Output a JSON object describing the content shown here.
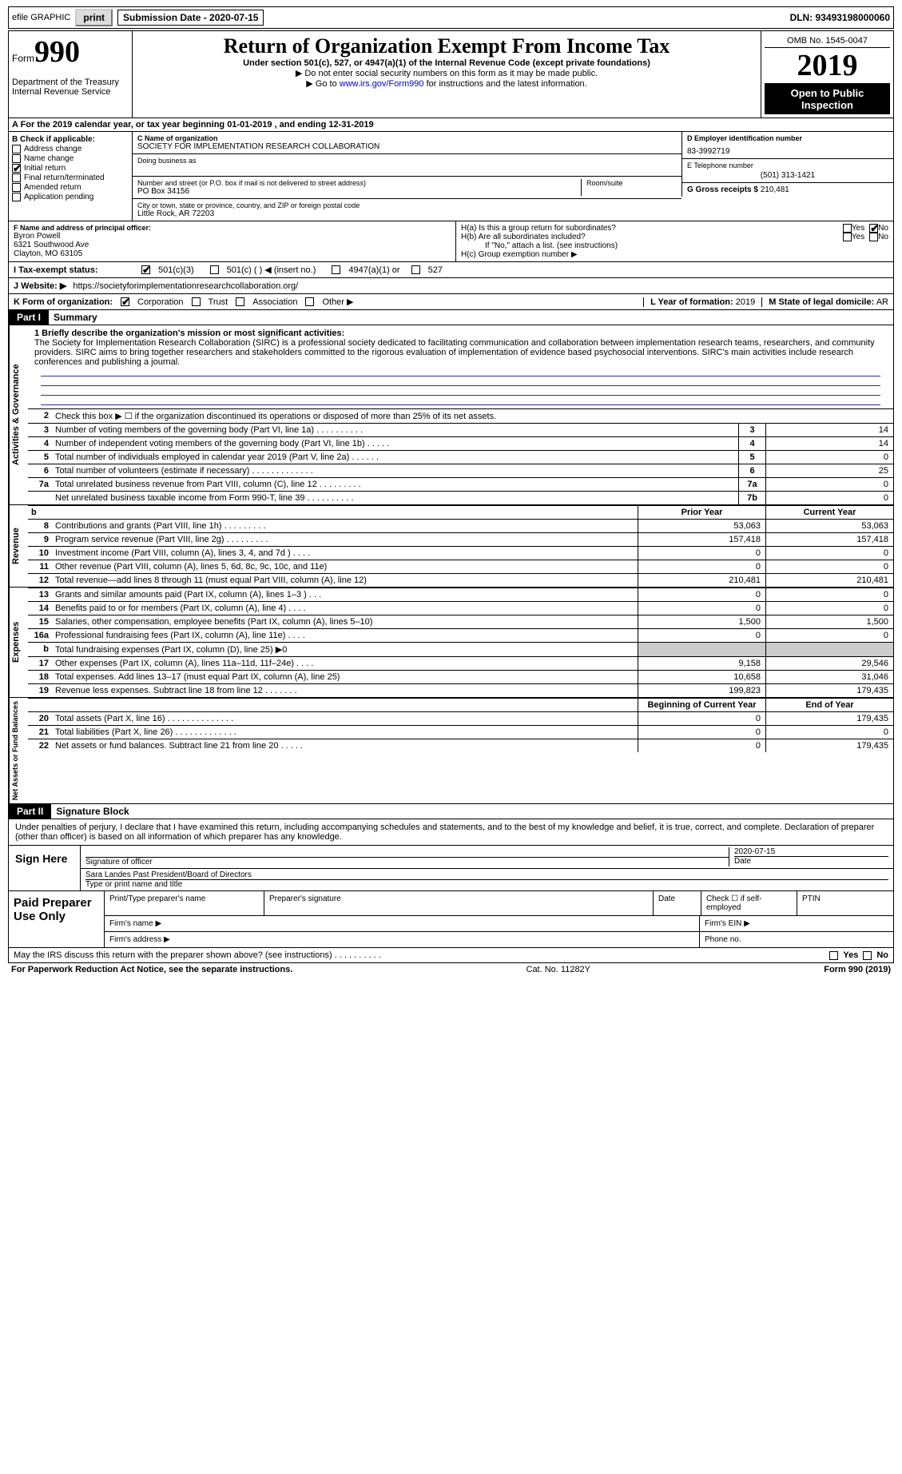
{
  "topbar": {
    "efile": "efile GRAPHIC",
    "print": "print",
    "subdate_label": "Submission Date - 2020-07-15",
    "dln": "DLN: 93493198000060"
  },
  "header": {
    "form_word": "Form",
    "form_num": "990",
    "dept": "Department of the Treasury\nInternal Revenue Service",
    "title": "Return of Organization Exempt From Income Tax",
    "sub": "Under section 501(c), 527, or 4947(a)(1) of the Internal Revenue Code (except private foundations)",
    "note1": "▶ Do not enter social security numbers on this form as it may be made public.",
    "note2a": "▶ Go to ",
    "note2_link": "www.irs.gov/Form990",
    "note2b": " for instructions and the latest information.",
    "omb": "OMB No. 1545-0047",
    "year": "2019",
    "inspect": "Open to Public Inspection"
  },
  "row_a": "A For the 2019 calendar year, or tax year beginning 01-01-2019     , and ending 12-31-2019",
  "box_b": {
    "title": "B Check if applicable:",
    "items": [
      "Address change",
      "Name change",
      "Initial return",
      "Final return/terminated",
      "Amended return",
      "Application pending"
    ],
    "checked": [
      false,
      false,
      true,
      false,
      false,
      false
    ]
  },
  "box_c": {
    "name_label": "C Name of organization",
    "name": "SOCIETY FOR IMPLEMENTATION RESEARCH COLLABORATION",
    "dba_label": "Doing business as",
    "addr_label": "Number and street (or P.O. box if mail is not delivered to street address)",
    "room_label": "Room/suite",
    "addr": "PO Box 34156",
    "city_label": "City or town, state or province, country, and ZIP or foreign postal code",
    "city": "Little Rock, AR   72203"
  },
  "box_d": {
    "label": "D Employer identification number",
    "val": "83-3992719"
  },
  "box_e": {
    "label": "E Telephone number",
    "val": "(501) 313-1421"
  },
  "box_g": {
    "label": "G Gross receipts $",
    "val": "210,481"
  },
  "box_f": {
    "label": "F  Name and address of principal officer:",
    "name": "Byron Powell",
    "addr1": "6321 Southwood Ave",
    "addr2": "Clayton, MO   63105"
  },
  "box_h": {
    "ha": "H(a)  Is this a group return for subordinates?",
    "hb": "H(b)  Are all subordinates included?",
    "hb_note": "If \"No,\" attach a list. (see instructions)",
    "hc": "H(c)  Group exemption number ▶",
    "yes": "Yes",
    "no": "No"
  },
  "box_i": {
    "label": "I   Tax-exempt status:",
    "o1": "501(c)(3)",
    "o2": "501(c) (  ) ◀ (insert no.)",
    "o3": "4947(a)(1) or",
    "o4": "527"
  },
  "box_j": {
    "label": "J   Website: ▶",
    "val": " https://societyforimplementationresearchcollaboration.org/"
  },
  "box_k": {
    "label": "K Form of organization:",
    "o1": "Corporation",
    "o2": "Trust",
    "o3": "Association",
    "o4": "Other ▶"
  },
  "box_l": {
    "label": "L Year of formation:",
    "val": "2019"
  },
  "box_m": {
    "label": "M State of legal domicile:",
    "val": "AR"
  },
  "part1": {
    "tag": "Part I",
    "title": "Summary"
  },
  "mission": {
    "q": "1   Briefly describe the organization's mission or most significant activities:",
    "text": "The Society for Implementation Research Collaboration (SIRC) is a professional society dedicated to facilitating communication and collaboration between implementation research teams, researchers, and community providers. SIRC aims to bring together researchers and stakeholders committed to the rigorous evaluation of implementation of evidence based psychosocial interventions. SIRC's main activities include research conferences and publishing a journal."
  },
  "gov_rows": [
    {
      "n": "2",
      "t": "Check this box ▶ ☐  if the organization discontinued its operations or disposed of more than 25% of its net assets.",
      "k": "",
      "v": ""
    },
    {
      "n": "3",
      "t": "Number of voting members of the governing body (Part VI, line 1a)  .    .    .    .    .    .    .    .    .    .",
      "k": "3",
      "v": "14"
    },
    {
      "n": "4",
      "t": "Number of independent voting members of the governing body (Part VI, line 1b)  .    .    .    .    .",
      "k": "4",
      "v": "14"
    },
    {
      "n": "5",
      "t": "Total number of individuals employed in calendar year 2019 (Part V, line 2a)  .    .    .    .    .    .",
      "k": "5",
      "v": "0"
    },
    {
      "n": "6",
      "t": "Total number of volunteers (estimate if necessary)   .    .    .    .    .    .    .    .    .    .    .    .    .",
      "k": "6",
      "v": "25"
    },
    {
      "n": "7a",
      "t": "Total unrelated business revenue from Part VIII, column (C), line 12  .    .    .    .    .    .    .    .    .",
      "k": "7a",
      "v": "0"
    },
    {
      "n": "",
      "t": "Net unrelated business taxable income from Form 990-T, line 39  .    .    .    .    .    .    .    .    .    .",
      "k": "7b",
      "v": "0"
    }
  ],
  "rev_hdr": {
    "b": "b",
    "c1": "Prior Year",
    "c2": "Current Year"
  },
  "rev_rows": [
    {
      "n": "8",
      "t": "Contributions and grants (Part VIII, line 1h)   .    .    .    .    .    .    .    .    .",
      "c1": "53,063",
      "c2": "53,063"
    },
    {
      "n": "9",
      "t": "Program service revenue (Part VIII, line 2g)   .    .    .    .    .    .    .    .    .",
      "c1": "157,418",
      "c2": "157,418"
    },
    {
      "n": "10",
      "t": "Investment income (Part VIII, column (A), lines 3, 4, and 7d )   .    .    .    .",
      "c1": "0",
      "c2": "0"
    },
    {
      "n": "11",
      "t": "Other revenue (Part VIII, column (A), lines 5, 6d, 8c, 9c, 10c, and 11e)",
      "c1": "0",
      "c2": "0"
    },
    {
      "n": "12",
      "t": "Total revenue—add lines 8 through 11 (must equal Part VIII, column (A), line 12)",
      "c1": "210,481",
      "c2": "210,481"
    }
  ],
  "exp_rows": [
    {
      "n": "13",
      "t": "Grants and similar amounts paid (Part IX, column (A), lines 1–3 )  .    .    .",
      "c1": "0",
      "c2": "0"
    },
    {
      "n": "14",
      "t": "Benefits paid to or for members (Part IX, column (A), line 4)  .    .    .    .",
      "c1": "0",
      "c2": "0"
    },
    {
      "n": "15",
      "t": "Salaries, other compensation, employee benefits (Part IX, column (A), lines 5–10)",
      "c1": "1,500",
      "c2": "1,500"
    },
    {
      "n": "16a",
      "t": "Professional fundraising fees (Part IX, column (A), line 11e)  .    .    .    .",
      "c1": "0",
      "c2": "0"
    },
    {
      "n": "b",
      "t": "Total fundraising expenses (Part IX, column (D), line 25) ▶0",
      "c1": "",
      "c2": "",
      "grey": true
    },
    {
      "n": "17",
      "t": "Other expenses (Part IX, column (A), lines 11a–11d, 11f–24e)  .    .    .    .",
      "c1": "9,158",
      "c2": "29,546"
    },
    {
      "n": "18",
      "t": "Total expenses. Add lines 13–17 (must equal Part IX, column (A), line 25)",
      "c1": "10,658",
      "c2": "31,046"
    },
    {
      "n": "19",
      "t": "Revenue less expenses. Subtract line 18 from line 12  .    .    .    .    .    .    .",
      "c1": "199,823",
      "c2": "179,435"
    }
  ],
  "net_hdr": {
    "c1": "Beginning of Current Year",
    "c2": "End of Year"
  },
  "net_rows": [
    {
      "n": "20",
      "t": "Total assets (Part X, line 16)  .    .    .    .    .    .    .    .    .    .    .    .    .    .",
      "c1": "0",
      "c2": "179,435"
    },
    {
      "n": "21",
      "t": "Total liabilities (Part X, line 26)  .    .    .    .    .    .    .    .    .    .    .    .    .",
      "c1": "0",
      "c2": "0"
    },
    {
      "n": "22",
      "t": "Net assets or fund balances. Subtract line 21 from line 20  .    .    .    .    .",
      "c1": "0",
      "c2": "179,435"
    }
  ],
  "vtabs": {
    "gov": "Activities & Governance",
    "rev": "Revenue",
    "exp": "Expenses",
    "net": "Net Assets or Fund Balances"
  },
  "part2": {
    "tag": "Part II",
    "title": "Signature Block"
  },
  "sig": {
    "decl": "Under penalties of perjury, I declare that I have examined this return, including accompanying schedules and statements, and to the best of my knowledge and belief, it is true, correct, and complete. Declaration of preparer (other than officer) is based on all information of which preparer has any knowledge.",
    "sign_here": "Sign Here",
    "sig_officer": "Signature of officer",
    "date": "2020-07-15",
    "date_lbl": "Date",
    "name": "Sara Landes  Past President/Board of Directors",
    "name_lbl": "Type or print name and title",
    "paid": "Paid Preparer Use Only",
    "p1": "Print/Type preparer's name",
    "p2": "Preparer's signature",
    "p3": "Date",
    "p4": "Check ☐ if self-employed",
    "p5": "PTIN",
    "fn": "Firm's name    ▶",
    "fe": "Firm's EIN ▶",
    "fa": "Firm's address ▶",
    "ph": "Phone no."
  },
  "discuss": {
    "q": "May the IRS discuss this return with the preparer shown above? (see instructions)   .    .    .    .    .    .    .    .    .    .",
    "yes": "Yes",
    "no": "No"
  },
  "footer": {
    "l": "For Paperwork Reduction Act Notice, see the separate instructions.",
    "c": "Cat. No. 11282Y",
    "r": "Form 990 (2019)"
  }
}
